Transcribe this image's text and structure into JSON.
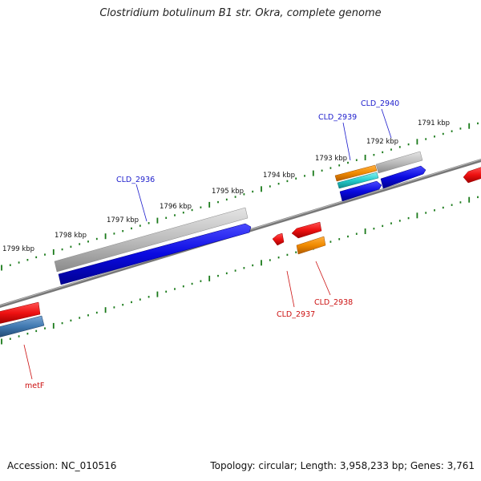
{
  "title": "Clostridium botulinum B1 str. Okra, complete genome",
  "footer": {
    "accession": "Accession: NC_010516",
    "topology": "Topology: circular; Length: 3,958,233 bp; Genes: 3,761"
  },
  "colors": {
    "backbone": "#7a7a7a",
    "tick": "#1a7a1a",
    "forward_label": "#1c1ccc",
    "reverse_label": "#cc1111",
    "gene_blue": "#0a0ae0",
    "gene_gray": "#bdbdbd",
    "gene_red": "#ee1111",
    "gene_orange": "#f08a00",
    "gene_cyan": "#22cccc",
    "gene_steel": "#3f78b0"
  },
  "scale_labels": [
    "1791 kbp",
    "1792 kbp",
    "1793 kbp",
    "1794 kbp",
    "1795 kbp",
    "1796 kbp",
    "1797 kbp",
    "1798 kbp",
    "1799 kbp"
  ],
  "gene_labels": {
    "forward": [
      "CLD_2940",
      "CLD_2939",
      "CLD_2936"
    ],
    "reverse": [
      "CLD_2938",
      "CLD_2937",
      "metF"
    ]
  }
}
